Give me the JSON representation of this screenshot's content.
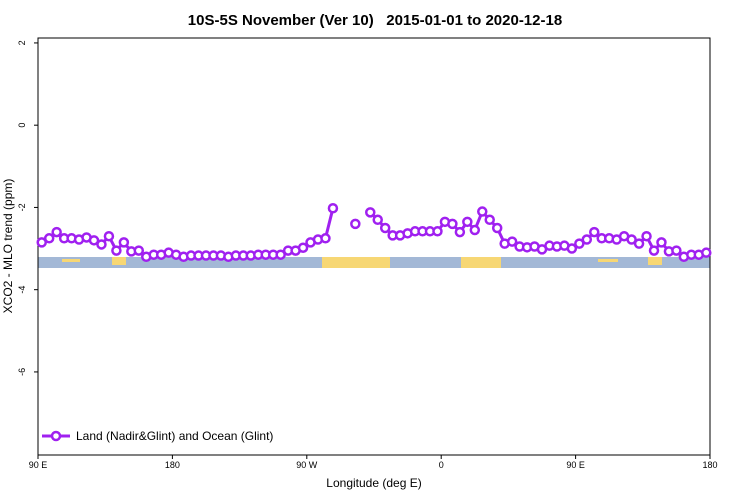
{
  "chart_data": {
    "type": "line",
    "title": "10S-5S November (Ver 10)   2015-01-01 to 2020-12-18",
    "xlabel": "Longitude (deg E)",
    "ylabel": "XCO2 - MLO trend (ppm)",
    "xlim": [
      90,
      540
    ],
    "ylim": [
      -8.02,
      2.12
    ],
    "xticks": [
      {
        "value": 90,
        "label": "90 E"
      },
      180,
      {
        "value": 270,
        "label": "90 W"
      },
      {
        "value": 360,
        "label": "0"
      },
      {
        "value": 450,
        "label": "90 E"
      },
      {
        "value": 540,
        "label": "180"
      }
    ],
    "yticks": [
      2,
      0,
      -2,
      -4,
      -6
    ],
    "legend": "bottom-left",
    "x": [
      92.5,
      97.5,
      102.5,
      107.5,
      112.5,
      117.5,
      122.5,
      127.5,
      132.5,
      137.5,
      142.5,
      147.5,
      152.5,
      157.5,
      162.5,
      167.5,
      172.5,
      177.5,
      182.5,
      187.5,
      192.5,
      197.5,
      202.5,
      207.5,
      212.5,
      217.5,
      222.5,
      227.5,
      232.5,
      237.5,
      242.5,
      247.5,
      252.5,
      257.5,
      262.5,
      267.5,
      272.5,
      277.5,
      282.5,
      287.5,
      292.5,
      297.5,
      302.5,
      307.5,
      312.5,
      317.5,
      322.5,
      327.5,
      332.5,
      337.5,
      342.5,
      347.5,
      352.5,
      357.5,
      362.5,
      367.5,
      372.5,
      377.5,
      382.5,
      387.5,
      392.5,
      397.5,
      402.5,
      407.5,
      412.5,
      417.5,
      422.5,
      427.5,
      432.5,
      437.5,
      442.5,
      447.5,
      452.5,
      457.5,
      462.5,
      467.5,
      472.5,
      477.5,
      482.5,
      487.5,
      492.5,
      497.5,
      502.5,
      507.5,
      512.5,
      517.5,
      522.5,
      527.5,
      532.5,
      537.5
    ],
    "series": [
      {
        "name": "Land (Nadir&Glint) and Ocean (Glint)",
        "color": "#a020f0",
        "values": [
          -2.85,
          -2.75,
          -2.6,
          -2.75,
          -2.75,
          -2.78,
          -2.73,
          -2.8,
          -2.9,
          -2.7,
          -3.05,
          -2.85,
          -3.07,
          -3.05,
          -3.2,
          -3.15,
          -3.15,
          -3.1,
          -3.15,
          -3.2,
          -3.17,
          -3.17,
          -3.17,
          -3.17,
          -3.17,
          -3.2,
          -3.17,
          -3.17,
          -3.17,
          -3.15,
          -3.15,
          -3.15,
          -3.15,
          -3.05,
          -3.05,
          -2.98,
          -2.85,
          -2.78,
          -2.75,
          -2.02,
          null,
          null,
          -2.4,
          null,
          -2.12,
          -2.3,
          -2.5,
          -2.68,
          -2.68,
          -2.63,
          -2.58,
          -2.58,
          -2.58,
          -2.58,
          -2.35,
          -2.4,
          -2.6,
          -2.35,
          -2.55,
          -2.1,
          -2.3,
          -2.5,
          -2.88,
          -2.83,
          -2.95,
          -2.97,
          -2.95,
          -3.02,
          -2.93,
          -2.95,
          -2.93,
          -3.0,
          -2.88,
          -2.78,
          -2.6,
          -2.75,
          -2.75,
          -2.78,
          -2.7,
          -2.78,
          -2.88,
          -2.7,
          -3.05,
          -2.85,
          -3.07,
          -3.05,
          -3.2,
          -3.15,
          -3.15,
          -3.1
        ]
      }
    ]
  }
}
